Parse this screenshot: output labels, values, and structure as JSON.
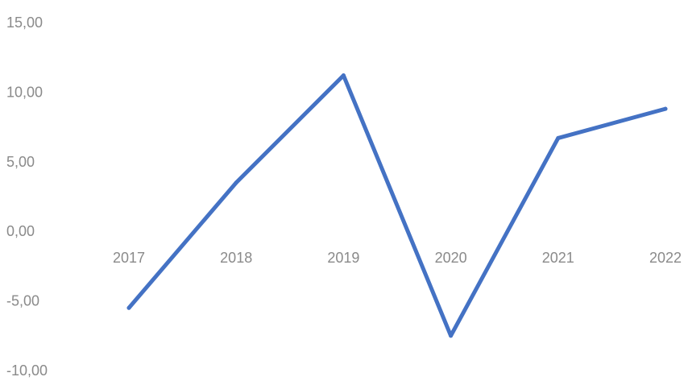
{
  "chart_data": {
    "type": "line",
    "title": "",
    "xlabel": "",
    "ylabel": "",
    "categories": [
      "2017",
      "2018",
      "2019",
      "2020",
      "2021",
      "2022"
    ],
    "series": [
      {
        "values": [
          -5.5,
          3.5,
          11.2,
          -7.5,
          6.7,
          8.8
        ],
        "color": "#4472c4"
      }
    ],
    "y_ticks": [
      "15,00",
      "10,00",
      "5,00",
      "0,00",
      "-5,00",
      "-10,00"
    ],
    "ylim": [
      -10,
      15
    ],
    "grid": false,
    "legend": "none",
    "x_tick_labels_at_zero": true
  }
}
